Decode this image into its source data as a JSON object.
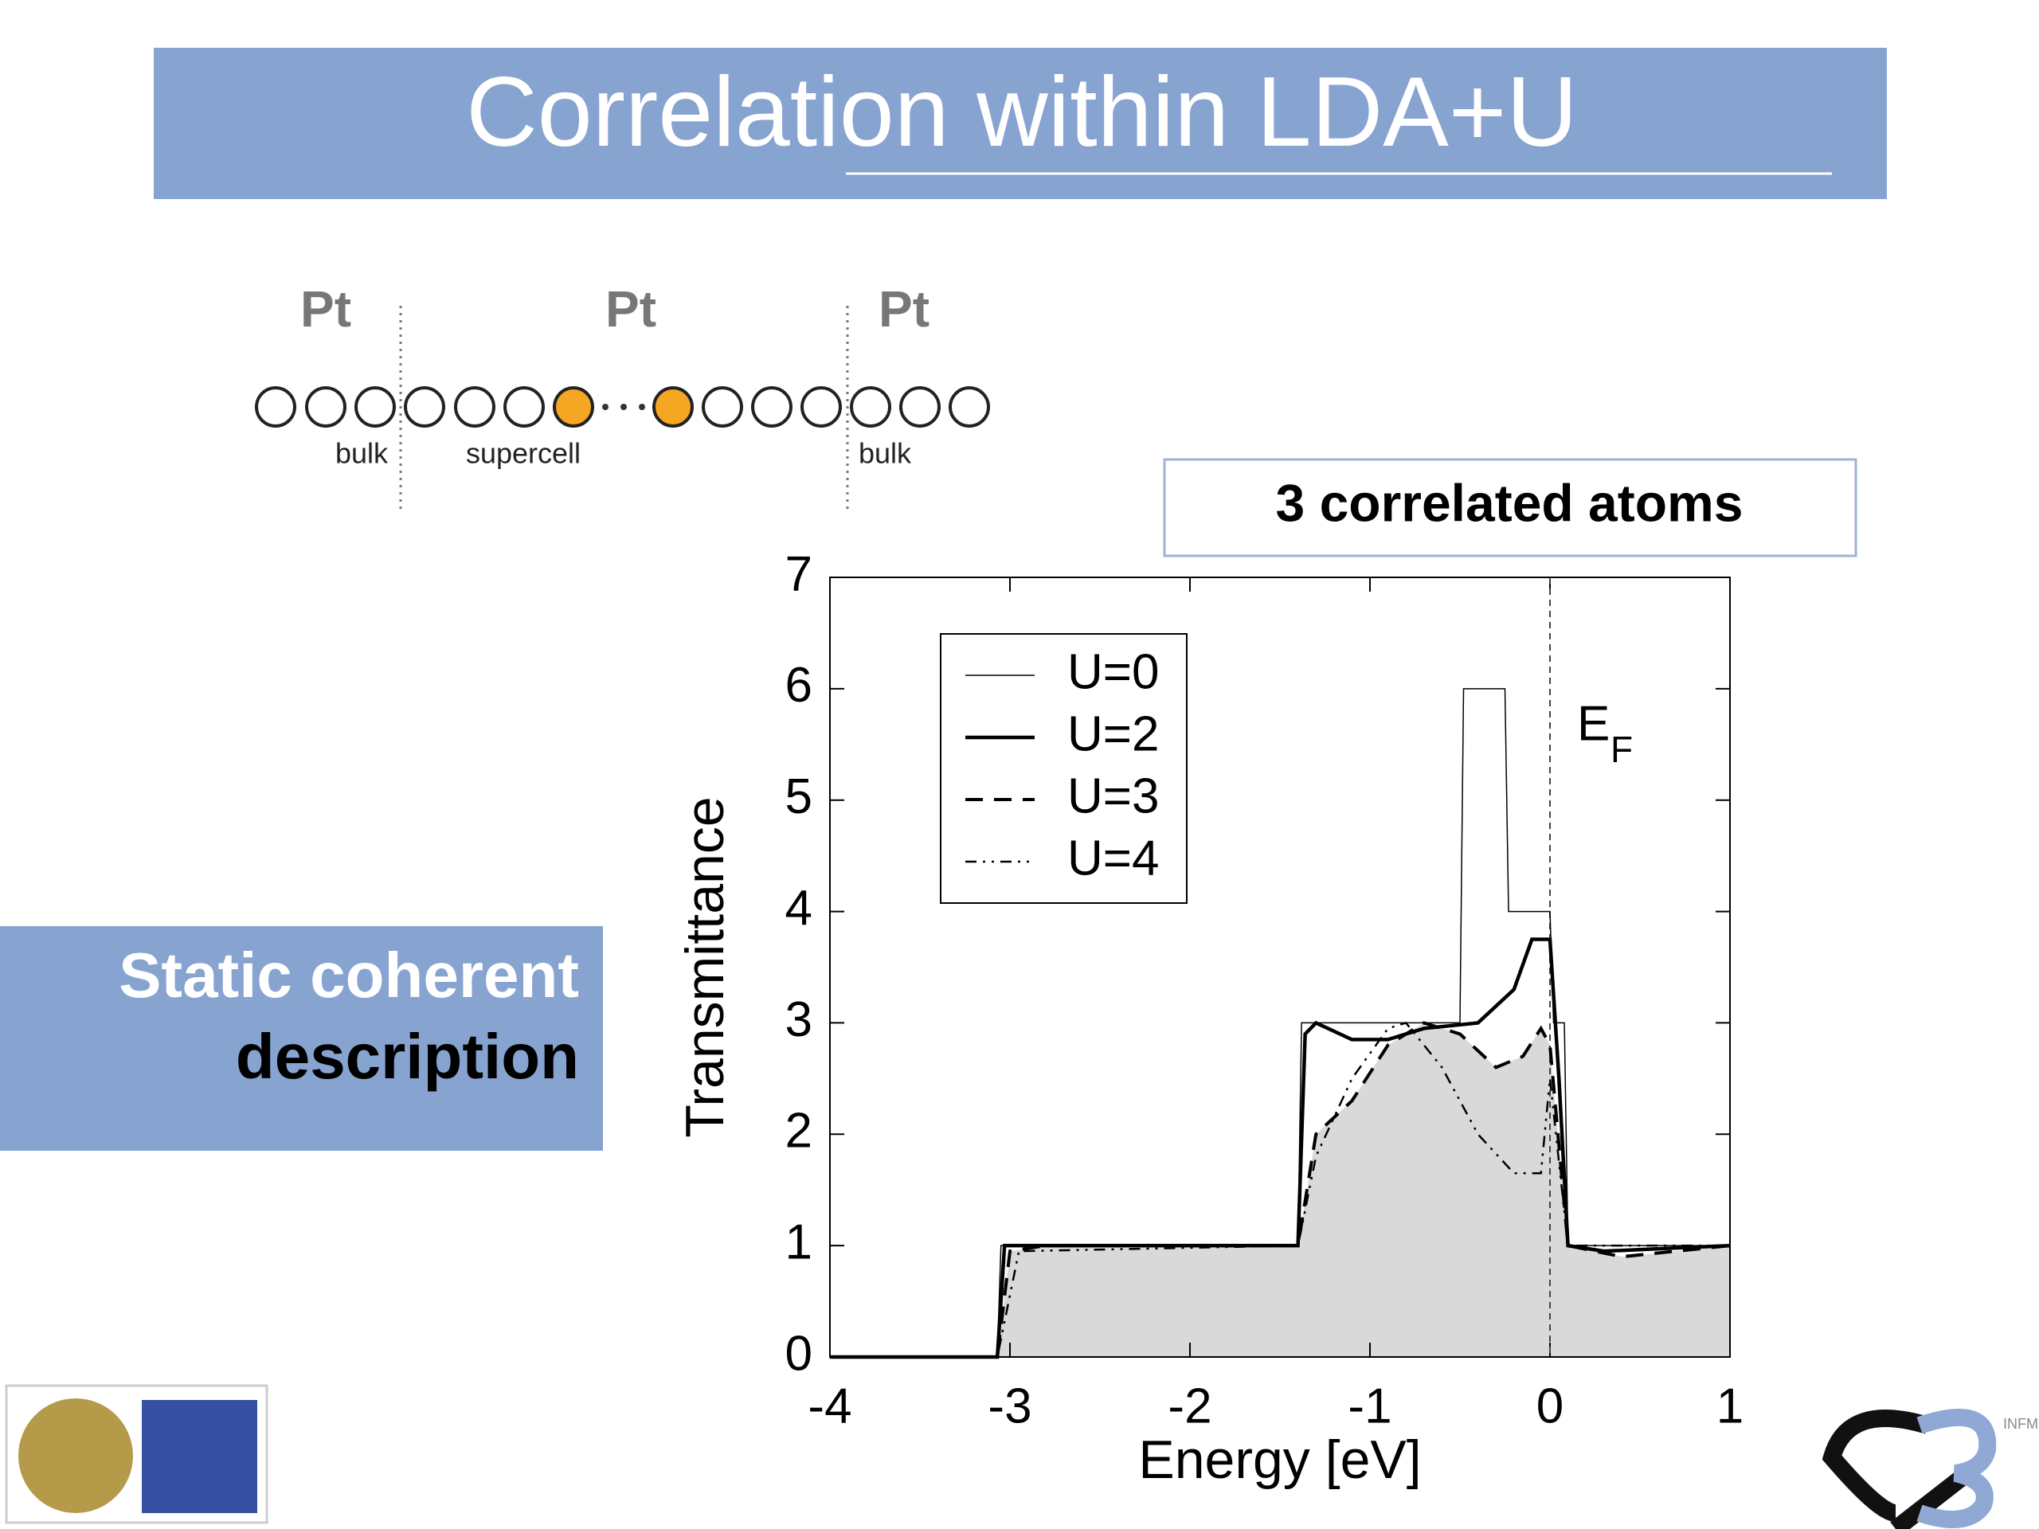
{
  "title": "Correlation within LDA+U",
  "diagram": {
    "labels": [
      "Pt",
      "Pt",
      "Pt"
    ],
    "regions": [
      "bulk",
      "supercell",
      "bulk"
    ]
  },
  "box_label": "3 correlated atoms",
  "side_text": [
    "Static coherent",
    "description"
  ],
  "logo_text": "INFM",
  "chart_data": {
    "type": "line",
    "xlabel": "Energy [eV]",
    "ylabel": "Transmittance",
    "annotation": {
      "text": "E",
      "sub": "F"
    },
    "vline": 0,
    "xlim": [
      -4,
      1
    ],
    "xticks": [
      -4,
      -3,
      -2,
      -1,
      0,
      1
    ],
    "ylim": [
      0,
      7
    ],
    "yticks": [
      0,
      1,
      2,
      3,
      4,
      5,
      6,
      7
    ],
    "legend": "upper left",
    "series": [
      {
        "name": "U=0",
        "color": "#000000",
        "linewidth": 1.5,
        "dash": "solid",
        "x": [
          -4,
          -3.07,
          -3.05,
          -1.4,
          -1.38,
          -0.5,
          -0.48,
          -0.25,
          -0.23,
          0,
          0.02,
          0.08,
          0.1,
          1
        ],
        "values": [
          0,
          0,
          1,
          1,
          3,
          3,
          6,
          6,
          4,
          4,
          3,
          3,
          1,
          1
        ]
      },
      {
        "name": "U=2",
        "color": "#000000",
        "linewidth": 4.5,
        "dash": "solid",
        "x": [
          -4,
          -3.07,
          -3.03,
          -1.4,
          -1.36,
          -1.3,
          -1.1,
          -0.9,
          -0.7,
          -0.4,
          -0.2,
          -0.1,
          0,
          0.05,
          0.1,
          0.3,
          1
        ],
        "values": [
          0,
          0,
          1,
          1,
          2.9,
          3,
          2.85,
          2.85,
          2.95,
          3,
          3.3,
          3.75,
          3.75,
          2.5,
          1,
          0.95,
          1
        ]
      },
      {
        "name": "U=3",
        "color": "#000000",
        "linewidth": 4,
        "dash": "dashed",
        "fill": "#d9d9d9",
        "x": [
          -4,
          -3.07,
          -3.0,
          -2.8,
          -1.4,
          -1.3,
          -1.1,
          -0.9,
          -0.7,
          -0.5,
          -0.3,
          -0.15,
          -0.05,
          0,
          0.1,
          0.4,
          1
        ],
        "values": [
          0,
          0,
          0.95,
          1,
          1,
          2,
          2.3,
          2.8,
          3,
          2.9,
          2.6,
          2.7,
          2.95,
          2.8,
          1,
          0.9,
          1
        ]
      },
      {
        "name": "U=4",
        "color": "#000000",
        "linewidth": 2.5,
        "dash": "dashdot",
        "x": [
          -4,
          -3.07,
          -2.95,
          -1.4,
          -1.3,
          -1.1,
          -0.9,
          -0.8,
          -0.6,
          -0.4,
          -0.2,
          -0.05,
          0,
          0.1,
          1
        ],
        "values": [
          0,
          0,
          0.95,
          1,
          1.8,
          2.5,
          2.95,
          3,
          2.6,
          2,
          1.65,
          1.65,
          2.5,
          1,
          1
        ]
      }
    ]
  }
}
